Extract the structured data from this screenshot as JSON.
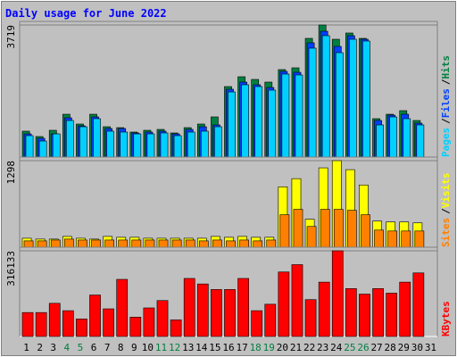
{
  "chart_data": [
    {
      "type": "bar",
      "title": "Daily usage for June 2022",
      "ylim": [
        0,
        3719
      ],
      "yticks": [
        3719
      ],
      "legend_separator": "/",
      "series": [
        {
          "name": "Hits",
          "color": "#008040",
          "values": [
            729,
            578,
            754,
            1206,
            930,
            1206,
            854,
            829,
            704,
            754,
            779,
            679,
            829,
            930,
            1131,
            1985,
            2262,
            2186,
            2111,
            2463,
            2513,
            3342,
            3719,
            3317,
            3493,
            3342,
            1081,
            1206,
            1307,
            1030,
            null
          ]
        },
        {
          "name": "Files",
          "color": "#0040ff",
          "values": [
            653,
            528,
            653,
            1106,
            880,
            1131,
            804,
            804,
            679,
            704,
            729,
            653,
            779,
            854,
            905,
            1910,
            2111,
            2036,
            1960,
            2412,
            2387,
            3217,
            3543,
            3116,
            3418,
            3317,
            1030,
            1181,
            1206,
            955,
            null
          ]
        },
        {
          "name": "Pages",
          "color": "#00d0ff",
          "values": [
            603,
            452,
            653,
            1030,
            854,
            1081,
            729,
            704,
            653,
            653,
            679,
            603,
            704,
            729,
            854,
            1834,
            2036,
            1985,
            1885,
            2337,
            2312,
            3066,
            3418,
            2940,
            3317,
            3267,
            905,
            1131,
            1081,
            905,
            null
          ]
        }
      ]
    },
    {
      "type": "bar",
      "ylim": [
        0,
        1298
      ],
      "yticks": [
        1298
      ],
      "legend_separator": "/",
      "series": [
        {
          "name": "Visits",
          "color": "#ffff00",
          "values": [
            135,
            122,
            122,
            162,
            135,
            122,
            162,
            149,
            149,
            135,
            135,
            135,
            135,
            135,
            162,
            149,
            162,
            149,
            149,
            906,
            1028,
            419,
            1190,
            1298,
            1163,
            933,
            392,
            379,
            379,
            365,
            null
          ]
        },
        {
          "name": "Sites",
          "color": "#ff8000",
          "values": [
            95,
            95,
            108,
            122,
            108,
            108,
            108,
            108,
            108,
            108,
            108,
            108,
            108,
            95,
            108,
            95,
            108,
            95,
            108,
            487,
            568,
            311,
            568,
            568,
            554,
            487,
            257,
            243,
            243,
            243,
            null
          ]
        }
      ]
    },
    {
      "type": "bar",
      "ylim": [
        0,
        316133
      ],
      "yticks": [
        316133
      ],
      "categories": [
        "1",
        "2",
        "3",
        "4",
        "5",
        "6",
        "7",
        "8",
        "9",
        "10",
        "11",
        "12",
        "13",
        "14",
        "15",
        "16",
        "17",
        "18",
        "19",
        "20",
        "21",
        "22",
        "23",
        "24",
        "25",
        "26",
        "27",
        "28",
        "29",
        "30",
        "31"
      ],
      "category_colors": [
        "#000000",
        "#000000",
        "#000000",
        "#008040",
        "#008040",
        "#000000",
        "#000000",
        "#000000",
        "#000000",
        "#000000",
        "#008040",
        "#008040",
        "#000000",
        "#000000",
        "#000000",
        "#000000",
        "#000000",
        "#008040",
        "#008040",
        "#000000",
        "#000000",
        "#000000",
        "#000000",
        "#000000",
        "#008040",
        "#008040",
        "#000000",
        "#000000",
        "#000000",
        "#000000",
        "#000000"
      ],
      "series": [
        {
          "name": "KBytes",
          "color": "#ff0000",
          "values": [
            88374,
            88374,
            122364,
            95172,
            64581,
            152955,
            101970,
            210738,
            71379,
            105369,
            132561,
            61182,
            214137,
            193743,
            173349,
            173349,
            214137,
            95172,
            118965,
            237930,
            265122,
            135960,
            200541,
            316133,
            176748,
            156354,
            176748,
            159753,
            200541,
            234531,
            null
          ]
        }
      ]
    }
  ]
}
